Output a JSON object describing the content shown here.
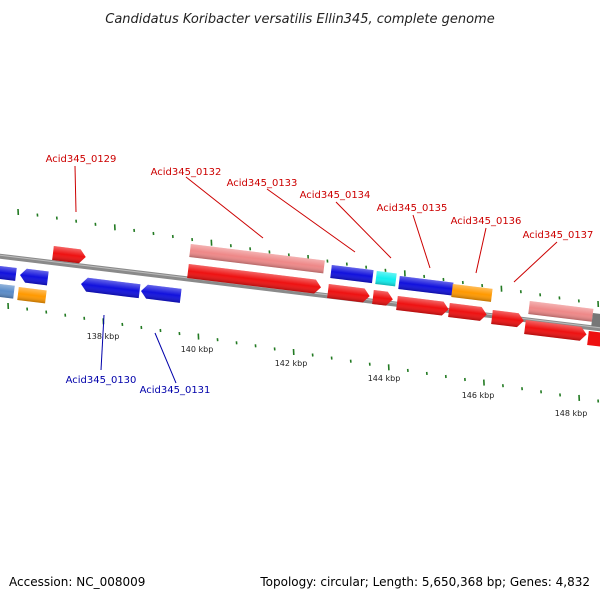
{
  "title": "Candidatus Koribacter versatilis Ellin345, complete genome",
  "footer": {
    "accession": "Accession: NC_008009",
    "summary": "Topology: circular; Length: 5,650,368 bp; Genes: 4,832"
  },
  "colors": {
    "backbone": "#8a8a8a",
    "forward_label": "#cc0000",
    "reverse_label": "#0000aa",
    "tick": "#227a22"
  },
  "scale_ticks": [
    {
      "label": "138 kbp"
    },
    {
      "label": "140 kbp"
    },
    {
      "label": "142 kbp"
    },
    {
      "label": "144 kbp"
    },
    {
      "label": "146 kbp"
    },
    {
      "label": "148 kbp"
    }
  ],
  "gene_labels": {
    "forward": [
      "Acid345_0129",
      "Acid345_0132",
      "Acid345_0133",
      "Acid345_0134",
      "Acid345_0135",
      "Acid345_0136",
      "Acid345_0137"
    ],
    "reverse": [
      "Acid345_0130",
      "Acid345_0131"
    ]
  },
  "feature_colors": {
    "cds_forward": "#ee1111",
    "cds_reverse": "#1111dd",
    "gene": "#ee8888",
    "orange": "#ff9900",
    "cyan": "#11eeee",
    "steel": "#5a8cc8",
    "grey": "#777777"
  }
}
